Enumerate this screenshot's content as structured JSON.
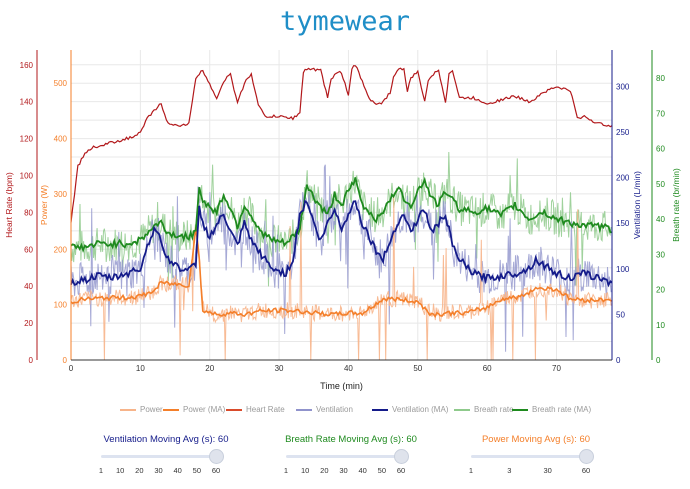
{
  "page": {
    "title": "tymewear"
  },
  "colors": {
    "hr": "#b2181b",
    "power": "#f47f2a",
    "power_raw": "#f7b48a",
    "vent": "#141b8a",
    "vent_raw": "#9093cc",
    "br": "#1e8a1e",
    "br_raw": "#8fca8c",
    "grid": "#e8e8e8"
  },
  "legend": [
    {
      "label": "Power",
      "color": "#f7b48a"
    },
    {
      "label": "Power (MA)",
      "color": "#f47f2a"
    },
    {
      "label": "Heart Rate",
      "color": "#d94b2b"
    },
    {
      "label": "Ventilation",
      "color": "#9093cc"
    },
    {
      "label": "Ventilation (MA)",
      "color": "#141b8a"
    },
    {
      "label": "Breath rate",
      "color": "#8fca8c"
    },
    {
      "label": "Breath rate (MA)",
      "color": "#1e8a1e"
    }
  ],
  "sliders": [
    {
      "label": "Ventilation Moving Avg (s): 60",
      "color": "#141b8a",
      "ticks": [
        "1",
        "10",
        "20",
        "30",
        "40",
        "50",
        "60"
      ],
      "value": 60,
      "max": 60
    },
    {
      "label": "Breath Rate Moving Avg (s): 60",
      "color": "#1e8a1e",
      "ticks": [
        "1",
        "10",
        "20",
        "30",
        "40",
        "50",
        "60"
      ],
      "value": 60,
      "max": 60
    },
    {
      "label": "Power Moving Avg (s): 60",
      "color": "#f47f2a",
      "ticks": [
        "1",
        "3",
        "30",
        "60"
      ],
      "value": 60,
      "max": 60
    }
  ],
  "chart_data": {
    "type": "line",
    "xlabel": "Time (min)",
    "xlim": [
      0,
      78
    ],
    "x_ticks": [
      0,
      10,
      20,
      30,
      40,
      50,
      60,
      70
    ],
    "axes": {
      "hr": {
        "label": "Heart Rate (bpm)",
        "ylim": [
          0,
          168
        ],
        "ticks": [
          0,
          20,
          40,
          60,
          80,
          100,
          120,
          140,
          160
        ]
      },
      "power": {
        "label": "Power (W)",
        "ylim": [
          0,
          560
        ],
        "ticks": [
          0,
          100,
          200,
          300,
          400,
          500
        ]
      },
      "vent": {
        "label": "Ventilation (L/min)",
        "ylim": [
          0,
          340
        ],
        "ticks": [
          0,
          50,
          100,
          150,
          200,
          250,
          300
        ]
      },
      "br": {
        "label": "Breath rate (br/min)",
        "ylim": [
          0,
          88
        ],
        "ticks": [
          0,
          10,
          20,
          30,
          40,
          50,
          60,
          70,
          80
        ]
      }
    },
    "series": [
      {
        "name": "Heart Rate",
        "axis": "hr",
        "x": [
          0,
          0.5,
          1,
          2,
          3,
          5,
          7,
          9,
          10,
          11,
          12,
          13,
          14,
          15,
          17,
          17.5,
          18,
          18.5,
          19,
          21,
          22,
          22.5,
          23,
          24,
          25,
          25.5,
          26,
          27,
          28,
          30,
          32,
          33,
          33.5,
          34,
          36,
          37,
          37.5,
          38,
          39,
          40,
          40.5,
          41,
          43,
          44,
          45,
          46,
          46.5,
          47,
          48,
          48.5,
          49,
          50,
          51,
          51.5,
          52,
          53,
          54,
          54.5,
          55,
          56,
          58,
          60,
          62,
          64,
          66,
          67,
          68,
          70,
          72,
          73,
          74,
          76,
          78
        ],
        "values": [
          75,
          90,
          105,
          112,
          115,
          117,
          119,
          121,
          123,
          131,
          135,
          139,
          128,
          127,
          128,
          140,
          153,
          155,
          157,
          142,
          151,
          153,
          155,
          139,
          150,
          153,
          155,
          138,
          132,
          132,
          131,
          134,
          156,
          158,
          157,
          142,
          152,
          155,
          156,
          143,
          158,
          160,
          142,
          138,
          140,
          145,
          153,
          157,
          158,
          145,
          153,
          156,
          140,
          152,
          154,
          157,
          140,
          155,
          157,
          142,
          142,
          139,
          141,
          143,
          140,
          142,
          145,
          148,
          146,
          131,
          132,
          128,
          127
        ]
      },
      {
        "name": "Power (MA)",
        "axis": "power",
        "x": [
          0,
          2,
          5,
          8,
          10,
          12,
          13,
          14,
          17,
          18,
          18.5,
          19,
          21,
          23,
          25,
          27,
          30,
          33,
          35,
          38,
          40,
          42,
          45,
          47,
          50,
          52,
          55,
          57,
          60,
          62,
          65,
          67,
          70,
          72,
          75,
          78
        ],
        "values": [
          105,
          110,
          112,
          113,
          115,
          125,
          140,
          138,
          135,
          240,
          180,
          90,
          82,
          85,
          82,
          88,
          90,
          88,
          85,
          82,
          85,
          84,
          110,
          110,
          105,
          82,
          85,
          85,
          95,
          110,
          115,
          130,
          128,
          110,
          108,
          110
        ]
      },
      {
        "name": "Ventilation (MA)",
        "axis": "vent",
        "x": [
          0,
          2,
          4,
          6,
          8,
          10,
          11,
          12,
          13,
          14,
          16,
          17,
          18,
          18.5,
          19,
          20,
          22,
          23,
          24,
          25,
          26,
          27,
          29,
          31,
          32,
          33,
          34,
          35,
          36,
          37,
          38,
          39,
          40,
          41,
          42,
          44,
          45,
          46,
          47,
          48,
          49,
          50,
          51,
          52,
          53,
          54,
          55,
          56,
          58,
          60,
          62,
          64,
          66,
          67,
          68,
          70,
          72,
          73,
          74,
          76,
          78
        ],
        "values": [
          85,
          88,
          92,
          90,
          95,
          100,
          125,
          145,
          130,
          110,
          100,
          98,
          105,
          170,
          150,
          135,
          160,
          140,
          125,
          150,
          130,
          120,
          100,
          95,
          110,
          160,
          175,
          150,
          130,
          150,
          165,
          145,
          160,
          175,
          150,
          120,
          110,
          130,
          150,
          160,
          140,
          155,
          165,
          140,
          150,
          160,
          125,
          110,
          95,
          90,
          92,
          95,
          100,
          110,
          105,
          95,
          90,
          92,
          95,
          90,
          85
        ]
      },
      {
        "name": "Breath rate (MA)",
        "axis": "br",
        "x": [
          0,
          2,
          4,
          6,
          8,
          10,
          12,
          13,
          14,
          16,
          17,
          18,
          18.5,
          19,
          21,
          22,
          23,
          24,
          25,
          26,
          27,
          29,
          31,
          33,
          34,
          35,
          37,
          38,
          39,
          40,
          41,
          42,
          44,
          46,
          47,
          48,
          49,
          50,
          51,
          52,
          53,
          54,
          56,
          58,
          60,
          62,
          64,
          66,
          68,
          70,
          72,
          74,
          76,
          78
        ],
        "values": [
          32,
          32,
          33,
          33,
          33,
          34,
          38,
          39,
          36,
          35,
          35,
          36,
          50,
          45,
          42,
          47,
          43,
          38,
          44,
          41,
          37,
          34,
          33,
          37,
          50,
          46,
          41,
          47,
          44,
          48,
          51,
          44,
          40,
          45,
          49,
          46,
          44,
          48,
          51,
          46,
          44,
          48,
          43,
          42,
          43,
          41,
          44,
          40,
          42,
          40,
          39,
          38,
          38,
          37
        ]
      }
    ]
  }
}
